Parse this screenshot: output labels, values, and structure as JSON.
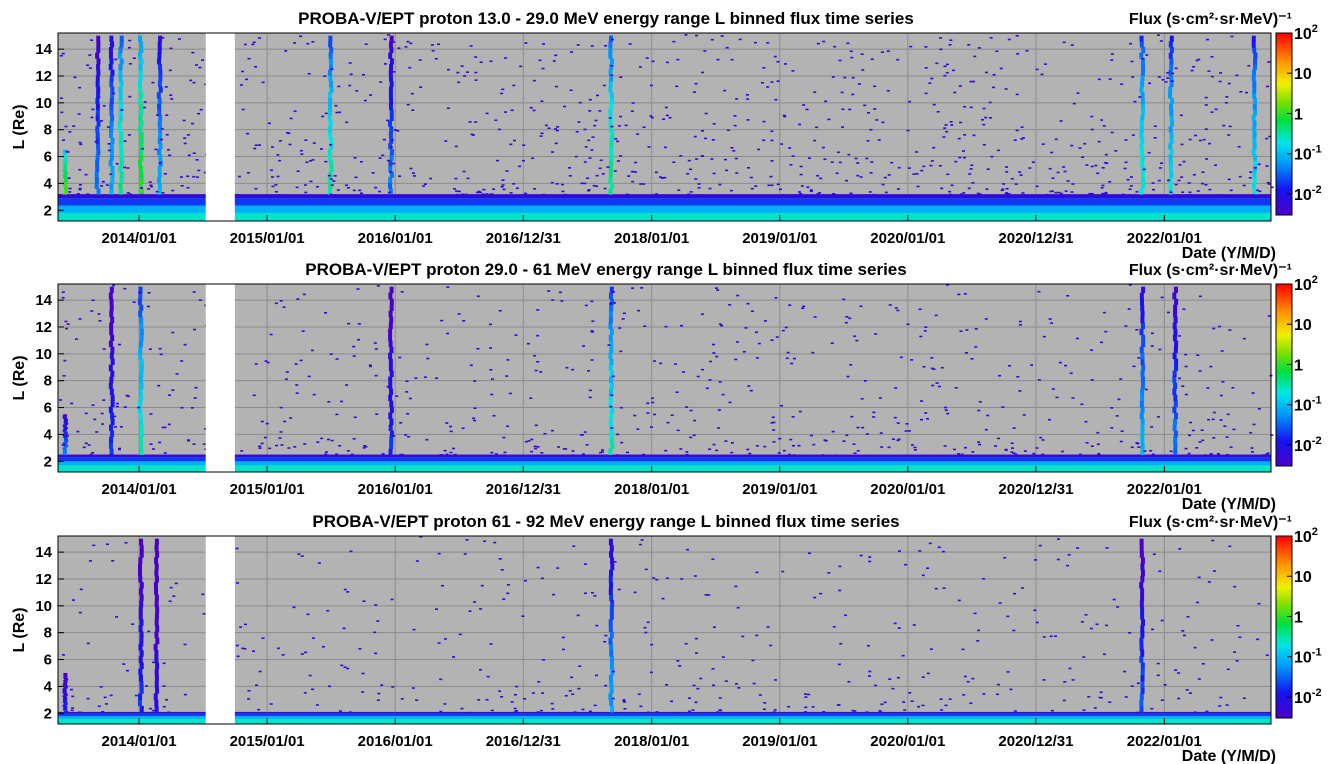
{
  "chart_data": [
    {
      "type": "heatmap",
      "title": "PROBA-V/EPT proton 13.0 - 29.0 MeV energy range L binned flux time series",
      "xlabel": "Date (Y/M/D)",
      "ylabel": "L (Re)",
      "colorbar_label": "Flux (s·cm²·sr·MeV)⁻¹",
      "colorbar_scale": "log",
      "colorbar_range": [
        0.003,
        100
      ],
      "colorbar_ticks": [
        {
          "base": "10",
          "exp": "-2"
        },
        {
          "base": "10",
          "exp": "-1"
        },
        {
          "base": "1",
          "exp": ""
        },
        {
          "base": "10",
          "exp": ""
        },
        {
          "base": "10",
          "exp": "2"
        }
      ],
      "x_ticks": [
        "2014/01/01",
        "2015/01/01",
        "2016/01/01",
        "2016/12/31",
        "2018/01/01",
        "2019/01/01",
        "2020/01/01",
        "2020/12/31",
        "2022/01/01"
      ],
      "y_ticks": [
        2,
        4,
        6,
        8,
        10,
        12,
        14
      ],
      "ylim": [
        1.2,
        15.2
      ],
      "xlim": [
        "2013/05/15",
        "2022/11/01"
      ],
      "data_gap": [
        "2014/07/10",
        "2014/10/01"
      ],
      "grid": true,
      "belt": {
        "core_L": 1.8,
        "top_L": 2.9,
        "outer_L": 3.2
      },
      "events": [
        {
          "date": "2013/06/05",
          "L_top": 6.5,
          "peak": 1.5
        },
        {
          "date": "2013/09/05",
          "L_top": 15,
          "peak": 0.05
        },
        {
          "date": "2013/10/15",
          "L_top": 15,
          "peak": 0.1
        },
        {
          "date": "2013/11/10",
          "L_top": 15,
          "peak": 0.5
        },
        {
          "date": "2014/01/06",
          "L_top": 15,
          "peak": 1.0
        },
        {
          "date": "2014/03/01",
          "L_top": 15,
          "peak": 0.1
        },
        {
          "date": "2015/07/01",
          "L_top": 15,
          "peak": 0.4
        },
        {
          "date": "2015/12/20",
          "L_top": 15,
          "peak": 0.05
        },
        {
          "date": "2017/09/08",
          "L_top": 15,
          "peak": 0.5
        },
        {
          "date": "2021/10/30",
          "L_top": 15,
          "peak": 0.3
        },
        {
          "date": "2022/01/20",
          "L_top": 15,
          "peak": 0.2
        },
        {
          "date": "2022/09/15",
          "L_top": 15,
          "peak": 0.2
        }
      ]
    },
    {
      "type": "heatmap",
      "title": "PROBA-V/EPT proton 29.0 -  61 MeV energy range L binned flux time series",
      "xlabel": "Date (Y/M/D)",
      "ylabel": "L (Re)",
      "colorbar_label": "Flux (s·cm²·sr·MeV)⁻¹",
      "colorbar_scale": "log",
      "colorbar_range": [
        0.003,
        100
      ],
      "colorbar_ticks": [
        {
          "base": "10",
          "exp": "-2"
        },
        {
          "base": "10",
          "exp": "-1"
        },
        {
          "base": "1",
          "exp": ""
        },
        {
          "base": "10",
          "exp": ""
        },
        {
          "base": "10",
          "exp": "2"
        }
      ],
      "x_ticks": [
        "2014/01/01",
        "2015/01/01",
        "2016/01/01",
        "2016/12/31",
        "2018/01/01",
        "2019/01/01",
        "2020/01/01",
        "2020/12/31",
        "2022/01/01"
      ],
      "y_ticks": [
        2,
        4,
        6,
        8,
        10,
        12,
        14
      ],
      "ylim": [
        1.2,
        15.2
      ],
      "xlim": [
        "2013/05/15",
        "2022/11/01"
      ],
      "data_gap": [
        "2014/07/10",
        "2014/10/01"
      ],
      "grid": true,
      "belt": {
        "core_L": 1.7,
        "top_L": 2.3,
        "outer_L": 2.5
      },
      "events": [
        {
          "date": "2013/06/05",
          "L_top": 5.5,
          "peak": 0.05
        },
        {
          "date": "2013/10/15",
          "L_top": 15,
          "peak": 0.02
        },
        {
          "date": "2014/01/06",
          "L_top": 15,
          "peak": 0.3
        },
        {
          "date": "2015/12/20",
          "L_top": 15,
          "peak": 0.02
        },
        {
          "date": "2017/09/08",
          "L_top": 15,
          "peak": 0.3
        },
        {
          "date": "2021/10/30",
          "L_top": 15,
          "peak": 0.1
        },
        {
          "date": "2022/02/01",
          "L_top": 15,
          "peak": 0.05
        }
      ]
    },
    {
      "type": "heatmap",
      "title": "PROBA-V/EPT proton  61 -  92 MeV energy range L binned flux time series",
      "xlabel": "Date (Y/M/D)",
      "ylabel": "L (Re)",
      "colorbar_label": "Flux (s·cm²·sr·MeV)⁻¹",
      "colorbar_scale": "log",
      "colorbar_range": [
        0.003,
        100
      ],
      "colorbar_ticks": [
        {
          "base": "10",
          "exp": "-2"
        },
        {
          "base": "10",
          "exp": "-1"
        },
        {
          "base": "1",
          "exp": ""
        },
        {
          "base": "10",
          "exp": ""
        },
        {
          "base": "10",
          "exp": "2"
        }
      ],
      "x_ticks": [
        "2014/01/01",
        "2015/01/01",
        "2016/01/01",
        "2016/12/31",
        "2018/01/01",
        "2019/01/01",
        "2020/01/01",
        "2020/12/31",
        "2022/01/01"
      ],
      "y_ticks": [
        2,
        4,
        6,
        8,
        10,
        12,
        14
      ],
      "ylim": [
        1.2,
        15.2
      ],
      "xlim": [
        "2013/05/15",
        "2022/11/01"
      ],
      "data_gap": [
        "2014/07/10",
        "2014/10/01"
      ],
      "grid": true,
      "belt": {
        "core_L": 1.6,
        "top_L": 2.0,
        "outer_L": 2.1
      },
      "events": [
        {
          "date": "2013/06/05",
          "L_top": 5.0,
          "peak": 0.02
        },
        {
          "date": "2014/01/06",
          "L_top": 15,
          "peak": 0.02
        },
        {
          "date": "2014/02/20",
          "L_top": 15,
          "peak": 0.01
        },
        {
          "date": "2017/09/08",
          "L_top": 15,
          "peak": 0.08
        },
        {
          "date": "2021/10/30",
          "L_top": 15,
          "peak": 0.03
        }
      ]
    }
  ]
}
